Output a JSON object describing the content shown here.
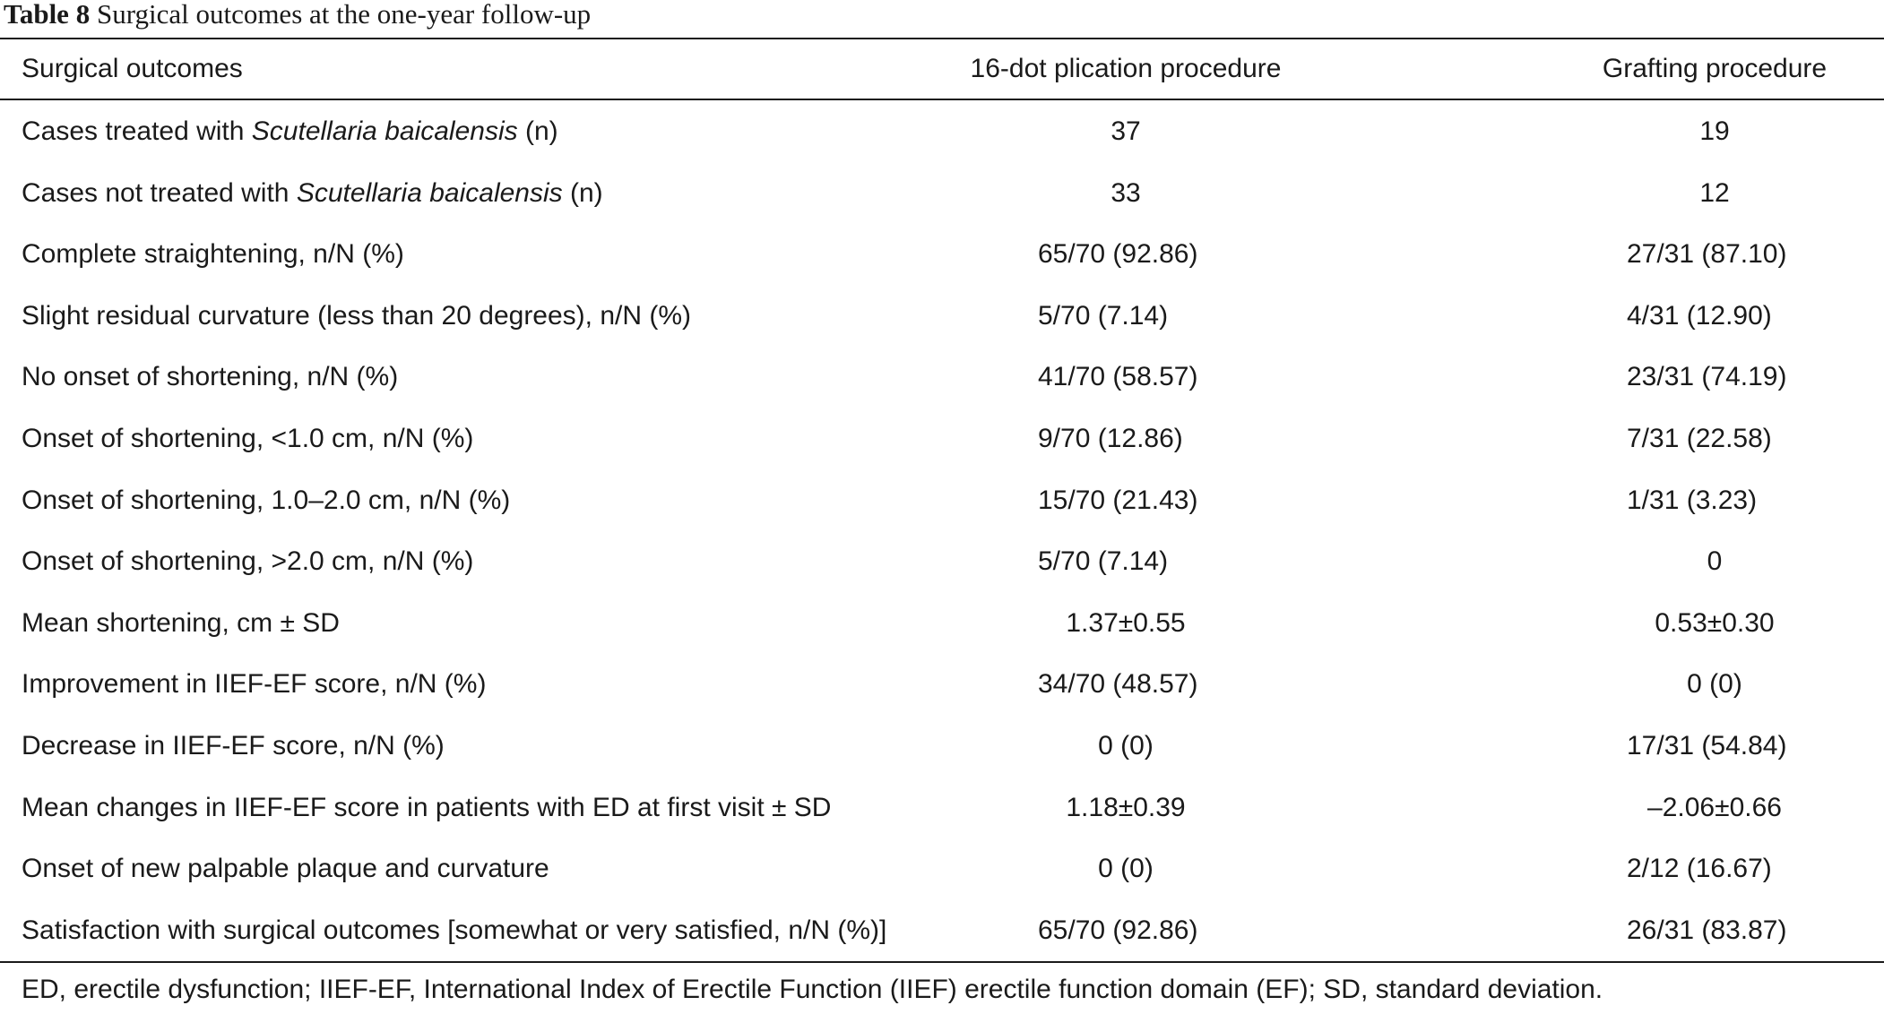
{
  "caption": {
    "label": "Table 8",
    "text": "Surgical outcomes at the one-year follow-up"
  },
  "table": {
    "columns": [
      "Surgical outcomes",
      "16-dot plication procedure",
      "Grafting procedure"
    ],
    "rows": [
      {
        "pre": "Cases treated with ",
        "italic": "Scutellaria baicalensis",
        "post": " (n)",
        "plication": "37",
        "grafting": "19"
      },
      {
        "pre": "Cases not treated with ",
        "italic": "Scutellaria baicalensis",
        "post": " (n)",
        "plication": "33",
        "grafting": "12"
      },
      {
        "pre": "Complete straightening, n/N (%)",
        "italic": "",
        "post": "",
        "plication": "65/70 (92.86)",
        "grafting": "27/31 (87.10)"
      },
      {
        "pre": "Slight residual curvature (less than 20 degrees), n/N (%)",
        "italic": "",
        "post": "",
        "plication": "5/70 (7.14)",
        "grafting": "4/31 (12.90)"
      },
      {
        "pre": "No onset of shortening, n/N (%)",
        "italic": "",
        "post": "",
        "plication": "41/70 (58.57)",
        "grafting": "23/31 (74.19)"
      },
      {
        "pre": "Onset of shortening, <1.0 cm, n/N (%)",
        "italic": "",
        "post": "",
        "plication": "9/70 (12.86)",
        "grafting": "7/31 (22.58)"
      },
      {
        "pre": "Onset of shortening, 1.0–2.0 cm, n/N (%)",
        "italic": "",
        "post": "",
        "plication": "15/70 (21.43)",
        "grafting": "1/31 (3.23)"
      },
      {
        "pre": "Onset of shortening, >2.0 cm, n/N (%)",
        "italic": "",
        "post": "",
        "plication": "5/70 (7.14)",
        "grafting": "0"
      },
      {
        "pre": "Mean shortening, cm ± SD",
        "italic": "",
        "post": "",
        "plication": "1.37±0.55",
        "grafting": "0.53±0.30"
      },
      {
        "pre": "Improvement in IIEF-EF score, n/N (%)",
        "italic": "",
        "post": "",
        "plication": "34/70 (48.57)",
        "grafting": "0 (0)"
      },
      {
        "pre": "Decrease in IIEF-EF score, n/N (%)",
        "italic": "",
        "post": "",
        "plication": "0 (0)",
        "grafting": "17/31 (54.84)"
      },
      {
        "pre": "Mean changes in IIEF-EF score in patients with ED at first visit ± SD",
        "italic": "",
        "post": "",
        "plication": "1.18±0.39",
        "grafting": "–2.06±0.66"
      },
      {
        "pre": "Onset of new palpable plaque and curvature",
        "italic": "",
        "post": "",
        "plication": "0 (0)",
        "grafting": "2/12 (16.67)"
      },
      {
        "pre": "Satisfaction with surgical outcomes [somewhat or very satisfied, n/N (%)]",
        "italic": "",
        "post": "",
        "plication": "65/70 (92.86)",
        "grafting": "26/31 (83.87)"
      }
    ]
  },
  "footnote": "ED, erectile dysfunction; IIEF-EF, International Index of Erectile Function (IIEF) erectile function domain (EF); SD, standard deviation."
}
